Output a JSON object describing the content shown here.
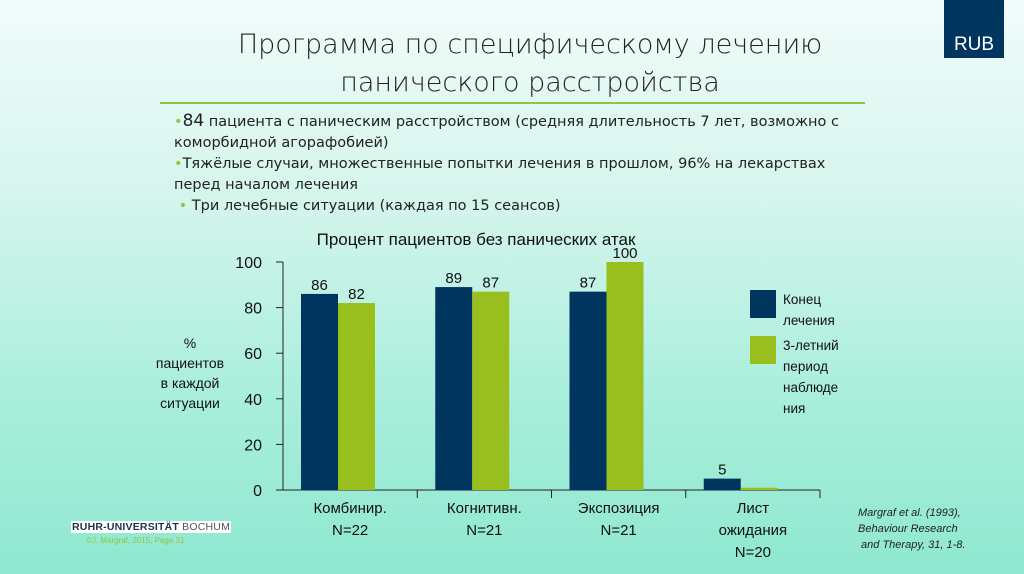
{
  "slide": {
    "title_lines": [
      "Программа по специфическому лечению",
      "панического расстройства"
    ],
    "logo": "RUB",
    "bullets": [
      {
        "lead": "84",
        "text": " пациента с паническим расстройством (средняя длительность 7 лет, возможно с коморбидной агорафобией)"
      },
      {
        "lead": "",
        "text": "Тяжёлые случаи, множественные попытки лечения в прошлом, 96% на лекарствах перед началом лечения"
      },
      {
        "lead": "",
        "text": " Три лечебные ситуации (каждая по 15 сеансов)"
      }
    ],
    "footer_logo_bold": "RUHR-UNIVERSITÄT",
    "footer_logo_light": " BOCHUM",
    "footer_copy": "©J. Margraf, 2015, Page 31",
    "citation_lines": [
      "Margraf et al. (1993),",
      "Behaviour Research",
      " and Therapy, 31, 1-8."
    ]
  },
  "chart_data": {
    "type": "bar",
    "title": "Процент пациентов без панических атак",
    "ylabel_lines": [
      "%",
      "пациентов",
      "в каждой",
      "ситуации"
    ],
    "ylim": [
      0,
      100
    ],
    "yticks": [
      "0",
      "20",
      "40",
      "60",
      "80",
      "100"
    ],
    "categories": [
      [
        "Комбинир.",
        "N=22"
      ],
      [
        "Когнитивн.",
        "N=21"
      ],
      [
        "Экспозиция",
        "N=21"
      ],
      [
        "Лист",
        "ожидания",
        "N=20"
      ]
    ],
    "series": [
      {
        "name": "Конец лечения",
        "name_lines": [
          "Конец",
          "лечения"
        ],
        "color": "#003560",
        "values": [
          86,
          89,
          87,
          5
        ],
        "labels": [
          "86",
          "89",
          "87",
          "5"
        ]
      },
      {
        "name": "3-летний период наблюдения",
        "name_lines": [
          "3-летний",
          "период",
          "наблюде",
          "ния"
        ],
        "color": "#98bf1e",
        "values": [
          82,
          87,
          100,
          1
        ],
        "labels": [
          "82",
          "87",
          "100",
          ""
        ]
      }
    ],
    "legend_position": "right",
    "grid": false
  }
}
